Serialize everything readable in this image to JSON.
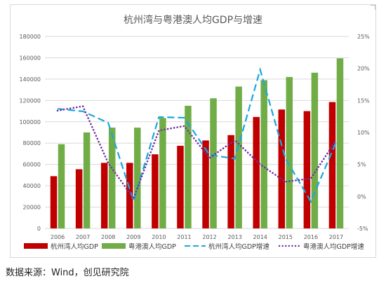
{
  "source_note": "数据来源：Wind，创见研究院",
  "chart_data": {
    "type": "bar",
    "title": "杭州湾与粤港澳人均GDP与增速",
    "categories": [
      "2006",
      "2007",
      "2008",
      "2009",
      "2010",
      "2011",
      "2012",
      "2013",
      "2014",
      "2015",
      "2016",
      "2017"
    ],
    "ylim_left": [
      0,
      180000
    ],
    "yticks_left": [
      "0",
      "20000",
      "40000",
      "60000",
      "80000",
      "100000",
      "120000",
      "140000",
      "160000",
      "180000"
    ],
    "ylim_right": [
      -5,
      25
    ],
    "yticks_right": [
      "-5%",
      "0%",
      "5%",
      "10%",
      "15%",
      "20%",
      "25%"
    ],
    "grid": true,
    "legend_position": "bottom",
    "series": [
      {
        "name": "杭州湾人均GDP",
        "kind": "bar",
        "axis": "left",
        "color": "#c00000",
        "values": [
          49000,
          55500,
          61500,
          61500,
          69500,
          77500,
          82500,
          87500,
          104500,
          111500,
          110000,
          118500
        ]
      },
      {
        "name": "粤港澳人均GDP",
        "kind": "bar",
        "axis": "left",
        "color": "#70ad47",
        "values": [
          79000,
          90000,
          94500,
          94500,
          103500,
          115000,
          122000,
          133000,
          139000,
          142000,
          146000,
          159500
        ]
      },
      {
        "name": "杭州湾人均GDP增速",
        "kind": "line",
        "axis": "right",
        "color": "#1aa7e0",
        "dash": "dash",
        "values": [
          13.7,
          13.3,
          11.5,
          -0.7,
          12.4,
          12.3,
          6.5,
          5.9,
          19.8,
          5.9,
          -0.8,
          8.5
        ]
      },
      {
        "name": "粤港澳人均GDP增速",
        "kind": "line",
        "axis": "right",
        "color": "#7030a0",
        "dash": "dot",
        "values": [
          13.4,
          14.1,
          5.2,
          -0.3,
          10.3,
          11.0,
          6.0,
          8.8,
          5.0,
          2.3,
          2.8,
          8.8
        ]
      }
    ]
  }
}
